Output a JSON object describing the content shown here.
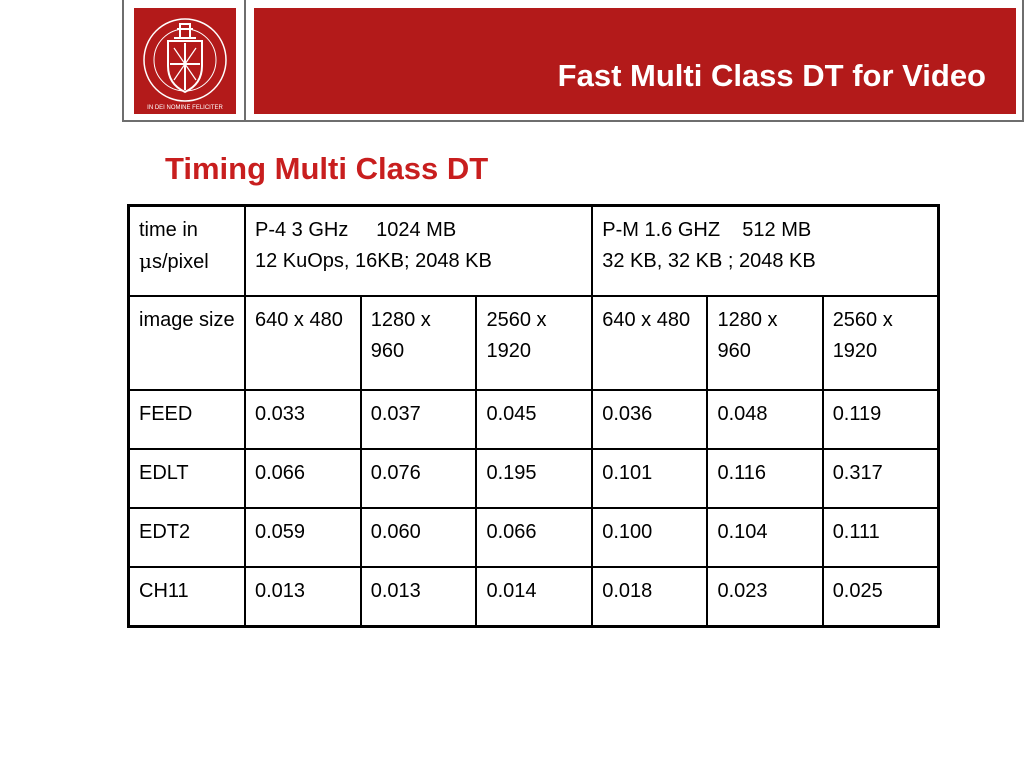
{
  "slide": {
    "title": "Fast Multi Class DT for Video",
    "subtitle": "Timing Multi Class DT"
  },
  "logo": {
    "name": "university-seal",
    "motto": "IN DEI NOMINE FELICITER",
    "color": "#b31a1a"
  },
  "colors": {
    "brand_red": "#b31a1a",
    "subtitle_red": "#c81e1e"
  },
  "table": {
    "corner": {
      "line1": "time in",
      "mu": "μ",
      "line2": "s/pixel"
    },
    "machines": [
      {
        "line1": "P-4 3 GHz     1024 MB",
        "line2": "12 KuOps, 16KB; 2048 KB"
      },
      {
        "line1": "P-M 1.6 GHZ    512 MB",
        "line2": "32 KB, 32 KB ; 2048 KB"
      }
    ],
    "size_label": "image size",
    "sizes": [
      "640 x 480",
      "1280 x 960",
      "2560 x 1920",
      "640 x 480",
      "1280 x 960",
      "2560 x 1920"
    ],
    "rows": [
      {
        "label": "FEED",
        "values": [
          "0.033",
          "0.037",
          "0.045",
          "0.036",
          "0.048",
          "0.119"
        ]
      },
      {
        "label": "EDLT",
        "values": [
          "0.066",
          "0.076",
          "0.195",
          "0.101",
          "0.116",
          "0.317"
        ]
      },
      {
        "label": "EDT2",
        "values": [
          "0.059",
          "0.060",
          "0.066",
          "0.100",
          "0.104",
          "0.111"
        ]
      },
      {
        "label": "CH11",
        "values": [
          "0.013",
          "0.013",
          "0.014",
          "0.018",
          "0.023",
          "0.025"
        ]
      }
    ]
  }
}
